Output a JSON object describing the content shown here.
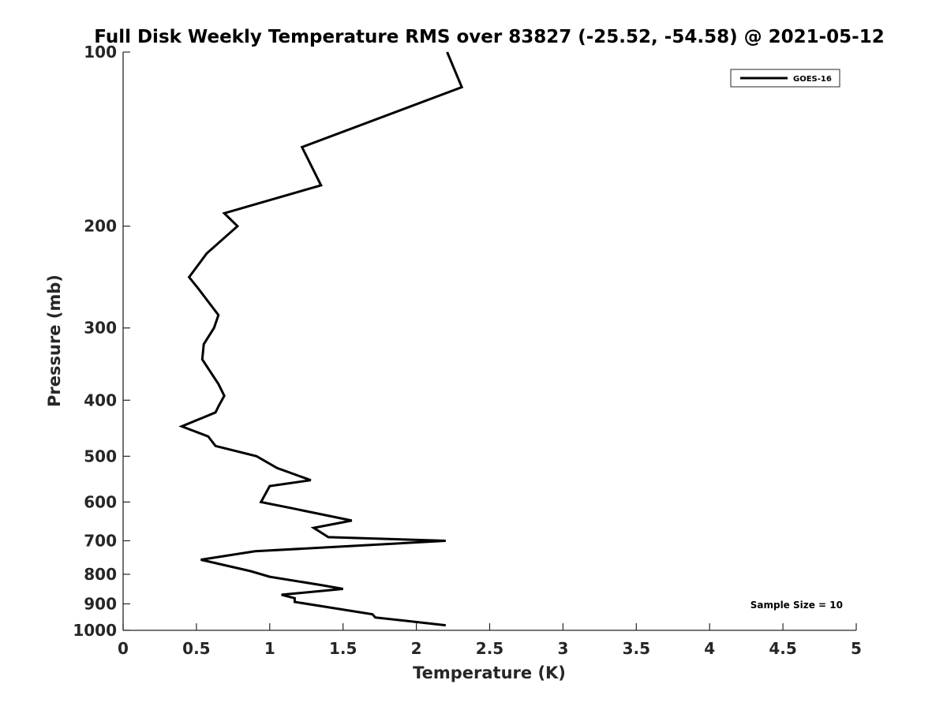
{
  "chart_data": {
    "type": "line",
    "title": "Full Disk Weekly Temperature RMS over 83827 (-25.52, -54.58) @ 2021-05-12",
    "xlabel": "Temperature (K)",
    "ylabel": "Pressure (mb)",
    "xlim": [
      0,
      5
    ],
    "ylim": [
      1000,
      100
    ],
    "y_scale": "log",
    "y_reversed": true,
    "x_ticks": [
      "0",
      "0.5",
      "1",
      "1.5",
      "2",
      "2.5",
      "3",
      "3.5",
      "4",
      "4.5",
      "5"
    ],
    "x_tick_values": [
      0,
      0.5,
      1,
      1.5,
      2,
      2.5,
      3,
      3.5,
      4,
      4.5,
      5
    ],
    "y_ticks": [
      "100",
      "200",
      "300",
      "400",
      "500",
      "600",
      "700",
      "800",
      "900",
      "1000"
    ],
    "y_tick_values": [
      100,
      200,
      300,
      400,
      500,
      600,
      700,
      800,
      900,
      1000
    ],
    "grid": false,
    "legend_position": "top-right",
    "annotation": "Sample Size = 10",
    "series": [
      {
        "name": "GOES-16",
        "color": "#000000",
        "x": [
          2.21,
          2.31,
          1.22,
          1.35,
          0.69,
          0.78,
          0.57,
          0.45,
          0.51,
          0.65,
          0.62,
          0.55,
          0.54,
          0.65,
          0.69,
          0.65,
          0.63,
          0.4,
          0.58,
          0.63,
          0.91,
          1.05,
          1.28,
          1.0,
          0.94,
          1.15,
          1.56,
          1.3,
          1.4,
          2.2,
          0.9,
          0.53,
          0.87,
          1.0,
          1.35,
          1.5,
          1.08,
          1.17,
          1.17,
          1.7,
          1.72,
          2.2
        ],
        "y": [
          100,
          115,
          146,
          170,
          190,
          200,
          223,
          245,
          256,
          285,
          300,
          320,
          340,
          375,
          393,
          410,
          420,
          444,
          462,
          480,
          500,
          524,
          550,
          563,
          600,
          615,
          646,
          665,
          690,
          700,
          730,
          755,
          790,
          808,
          835,
          848,
          868,
          880,
          893,
          938,
          950,
          980
        ]
      }
    ]
  }
}
